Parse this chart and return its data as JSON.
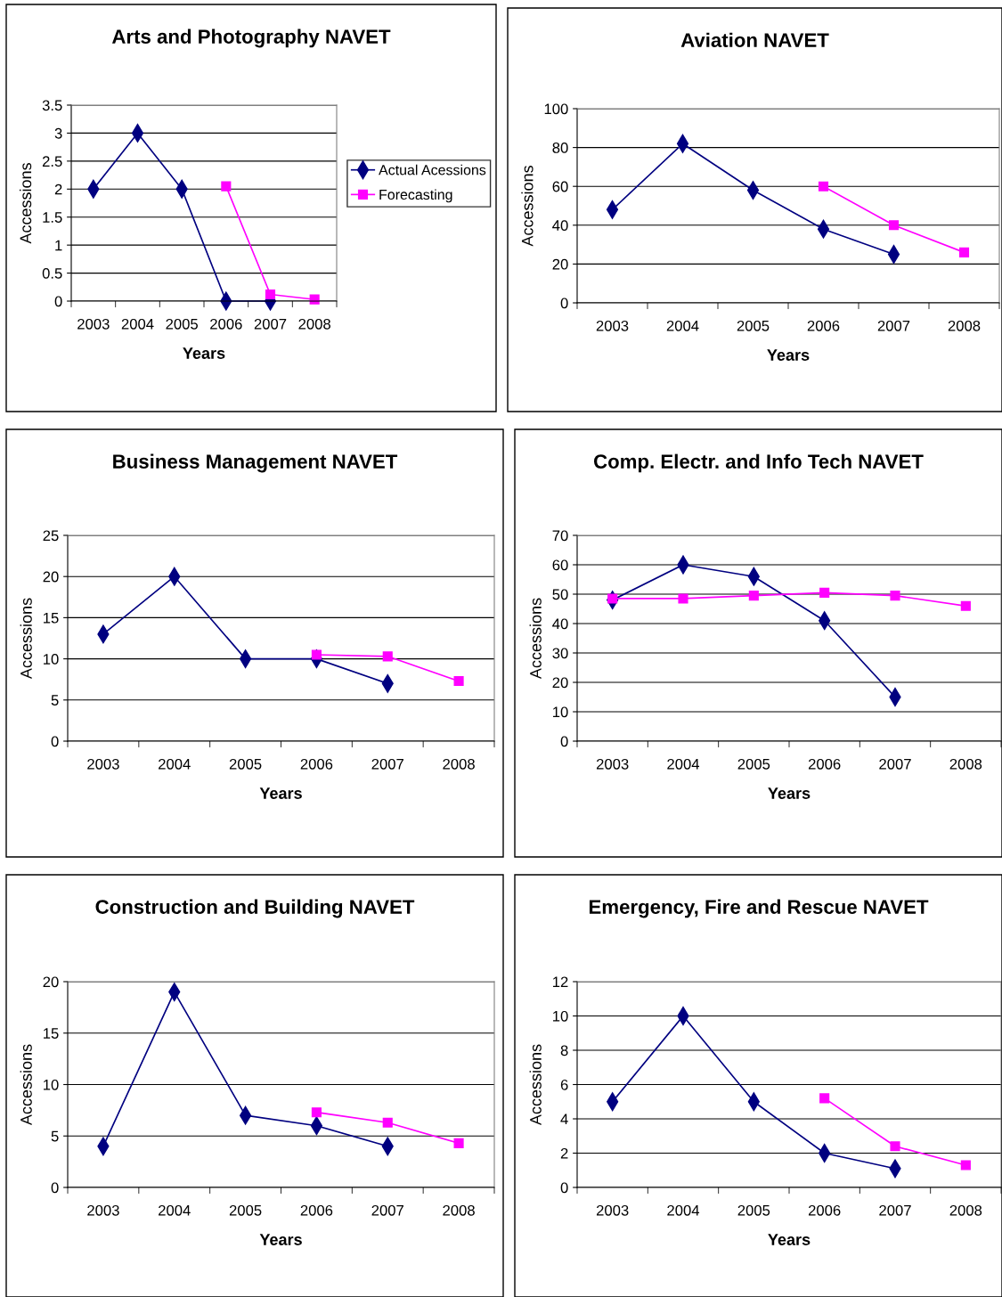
{
  "chart_data": [
    {
      "type": "line",
      "title": "Arts and Photography NAVET",
      "xlabel": "Years",
      "ylabel": "Accessions",
      "categories": [
        "2003",
        "2004",
        "2005",
        "2006",
        "2007",
        "2008"
      ],
      "ylim": [
        0,
        3.5
      ],
      "yticks": [
        0,
        0.5,
        1,
        1.5,
        2,
        2.5,
        3,
        3.5
      ],
      "grid": "y",
      "legend": "right",
      "series": [
        {
          "name": "Actual Acessions",
          "color": "#000080",
          "marker": "diamond",
          "values": [
            2,
            3,
            2,
            0,
            0,
            null
          ]
        },
        {
          "name": "Forecasting",
          "color": "#ff00ff",
          "marker": "square",
          "values": [
            null,
            null,
            null,
            2.05,
            0.12,
            0.03
          ]
        }
      ]
    },
    {
      "type": "line",
      "title": "Aviation NAVET",
      "xlabel": "Years",
      "ylabel": "Accessions",
      "categories": [
        "2003",
        "2004",
        "2005",
        "2006",
        "2007",
        "2008"
      ],
      "ylim": [
        0,
        100
      ],
      "yticks": [
        0,
        20,
        40,
        60,
        80,
        100
      ],
      "grid": "y",
      "series": [
        {
          "color": "#000080",
          "marker": "diamond",
          "values": [
            48,
            82,
            58,
            38,
            25,
            null
          ]
        },
        {
          "color": "#ff00ff",
          "marker": "square",
          "values": [
            null,
            null,
            null,
            60,
            40,
            26
          ]
        }
      ]
    },
    {
      "type": "line",
      "title": "Business Management NAVET",
      "xlabel": "Years",
      "ylabel": "Accessions",
      "categories": [
        "2003",
        "2004",
        "2005",
        "2006",
        "2007",
        "2008"
      ],
      "ylim": [
        0,
        25
      ],
      "yticks": [
        0,
        5,
        10,
        15,
        20,
        25
      ],
      "grid": "y",
      "series": [
        {
          "color": "#000080",
          "marker": "diamond",
          "values": [
            13,
            20,
            10,
            10,
            7,
            null
          ]
        },
        {
          "color": "#ff00ff",
          "marker": "square",
          "values": [
            null,
            null,
            null,
            10.5,
            10.3,
            7.3
          ]
        }
      ]
    },
    {
      "type": "line",
      "title": "Comp. Electr. and Info Tech NAVET",
      "xlabel": "Years",
      "ylabel": "Accessions",
      "categories": [
        "2003",
        "2004",
        "2005",
        "2006",
        "2007",
        "2008"
      ],
      "ylim": [
        0,
        70
      ],
      "yticks": [
        0,
        10,
        20,
        30,
        40,
        50,
        60,
        70
      ],
      "grid": "y",
      "series": [
        {
          "color": "#000080",
          "marker": "diamond",
          "values": [
            48,
            60,
            56,
            41,
            15,
            null
          ]
        },
        {
          "color": "#ff00ff",
          "marker": "square",
          "values": [
            48.5,
            48.5,
            49.5,
            50.5,
            49.5,
            46
          ]
        }
      ]
    },
    {
      "type": "line",
      "title": "Construction and Building NAVET",
      "xlabel": "Years",
      "ylabel": "Accessions",
      "categories": [
        "2003",
        "2004",
        "2005",
        "2006",
        "2007",
        "2008"
      ],
      "ylim": [
        0,
        20
      ],
      "yticks": [
        0,
        5,
        10,
        15,
        20
      ],
      "grid": "y",
      "series": [
        {
          "color": "#000080",
          "marker": "diamond",
          "values": [
            4,
            19,
            7,
            6,
            4,
            null
          ]
        },
        {
          "color": "#ff00ff",
          "marker": "square",
          "values": [
            null,
            null,
            null,
            7.3,
            6.3,
            4.3
          ]
        }
      ]
    },
    {
      "type": "line",
      "title": "Emergency, Fire and Rescue NAVET",
      "xlabel": "Years",
      "ylabel": "Accessions",
      "categories": [
        "2003",
        "2004",
        "2005",
        "2006",
        "2007",
        "2008"
      ],
      "ylim": [
        0,
        12
      ],
      "yticks": [
        0,
        2,
        4,
        6,
        8,
        10,
        12
      ],
      "grid": "y",
      "series": [
        {
          "color": "#000080",
          "marker": "diamond",
          "values": [
            5,
            10,
            5,
            2,
            1.1,
            null
          ]
        },
        {
          "color": "#ff00ff",
          "marker": "square",
          "values": [
            null,
            null,
            null,
            5.2,
            2.4,
            1.3
          ]
        }
      ]
    }
  ]
}
